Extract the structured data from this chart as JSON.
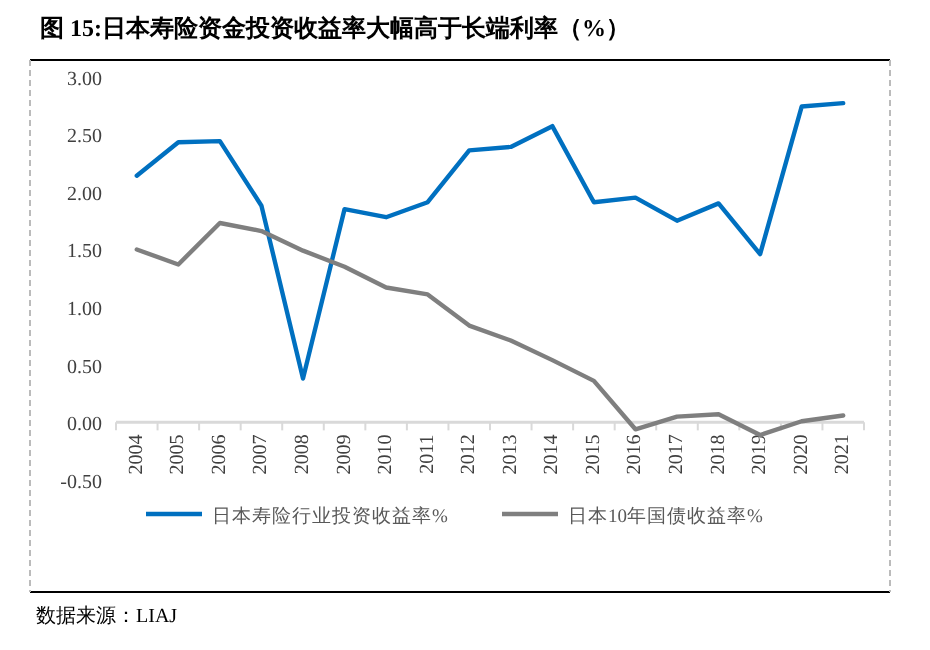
{
  "chart_data": {
    "type": "line",
    "title": "图 15:日本寿险资金投资收益率大幅高于长端利率（%）",
    "categories": [
      "2004",
      "2005",
      "2006",
      "2007",
      "2008",
      "2009",
      "2010",
      "2011",
      "2012",
      "2013",
      "2014",
      "2015",
      "2016",
      "2017",
      "2018",
      "2019",
      "2020",
      "2021"
    ],
    "series": [
      {
        "name": "日本寿险行业投资收益率%",
        "color": "#0070c0",
        "values": [
          2.14,
          2.43,
          2.44,
          1.88,
          0.38,
          1.85,
          1.78,
          1.91,
          2.36,
          2.39,
          2.57,
          1.91,
          1.95,
          1.75,
          1.9,
          1.46,
          2.74,
          2.77
        ]
      },
      {
        "name": "日本10年国债收益率%",
        "color": "#7f7f7f",
        "values": [
          1.5,
          1.37,
          1.73,
          1.66,
          1.49,
          1.35,
          1.17,
          1.11,
          0.84,
          0.71,
          0.54,
          0.36,
          -0.06,
          0.05,
          0.07,
          -0.11,
          0.01,
          0.06
        ]
      }
    ],
    "ylim": [
      -0.5,
      3.0
    ],
    "yticks": [
      {
        "value": -0.5,
        "label": "-0.50"
      },
      {
        "value": 0,
        "label": "0.00"
      },
      {
        "value": 0.5,
        "label": "0.50"
      },
      {
        "value": 1,
        "label": "1.00"
      },
      {
        "value": 1.5,
        "label": "1.50"
      },
      {
        "value": 2,
        "label": "2.00"
      },
      {
        "value": 2.5,
        "label": "2.50"
      },
      {
        "value": 3,
        "label": "3.00"
      }
    ],
    "grid": false,
    "legend": "bottom",
    "marker": "none",
    "line_style": "solid",
    "annotations": [
      "数据来源：LIAJ"
    ]
  }
}
